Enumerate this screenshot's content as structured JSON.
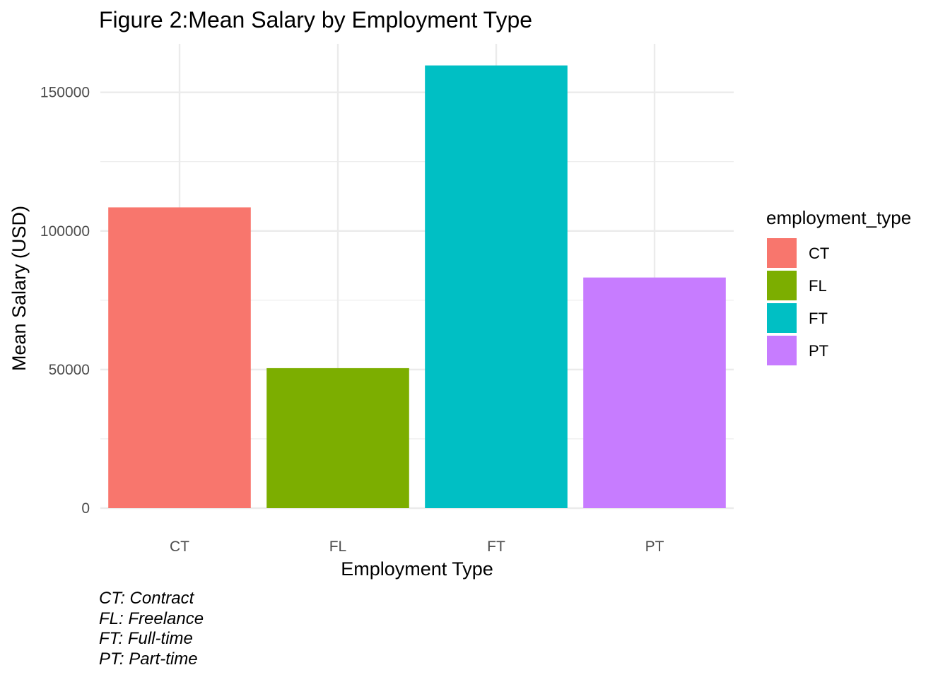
{
  "chart_data": {
    "type": "bar",
    "title": "Figure 2:Mean Salary by Employment Type",
    "xlabel": "Employment Type",
    "ylabel": "Mean Salary (USD)",
    "categories": [
      "CT",
      "FL",
      "FT",
      "PT"
    ],
    "values": [
      108500,
      50500,
      159700,
      83200
    ],
    "colors": [
      "#F8766D",
      "#7CAE00",
      "#00BFC4",
      "#C77CFF"
    ],
    "ylim": [
      0,
      167500
    ],
    "y_ticks": [
      0,
      50000,
      100000,
      150000
    ],
    "y_tick_labels": [
      "0",
      "50000",
      "100000",
      "150000"
    ],
    "y_minor_ticks": [
      25000,
      75000,
      125000
    ],
    "grid": true,
    "legend": {
      "title": "employment_type",
      "placement": "right",
      "entries": [
        "CT",
        "FL",
        "FT",
        "PT"
      ]
    },
    "caption": [
      "CT: Contract",
      "FL: Freelance",
      "FT: Full-time",
      "PT: Part-time"
    ]
  }
}
